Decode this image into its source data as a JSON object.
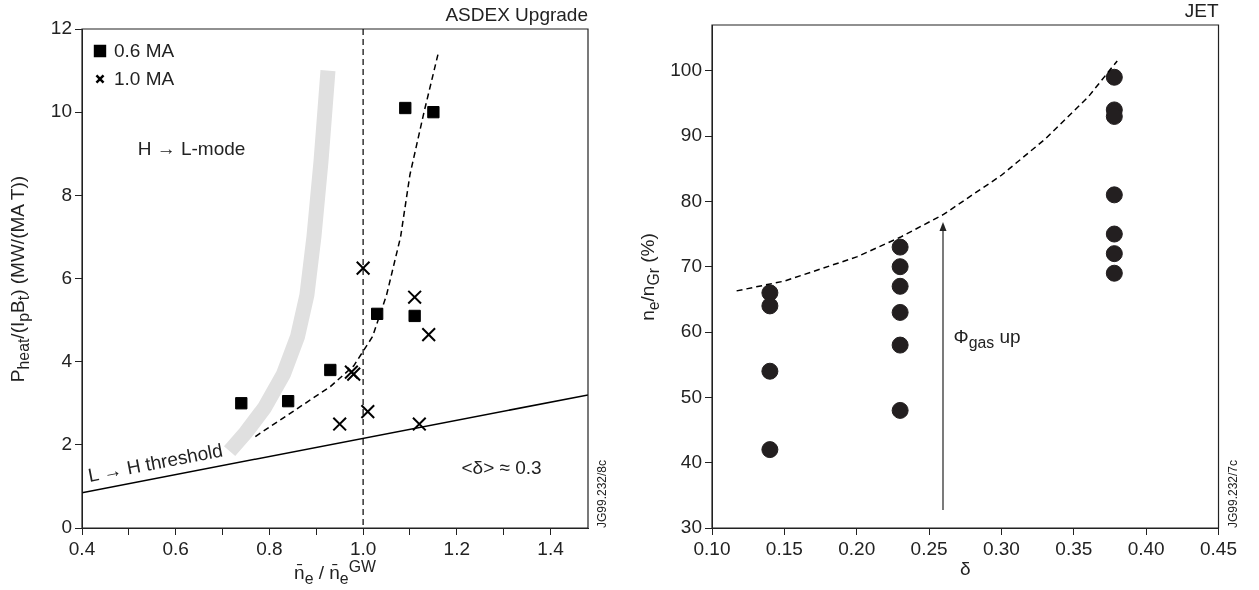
{
  "chart_data": [
    {
      "type": "scatter",
      "title": "ASDEX Upgrade",
      "xlabel": "n̄$_{e}$ / n̄$_{e}$$^{GW}$",
      "ylabel": "P$_{heat}$/(I$_{p}$B$_{t}$) (MW/(MA T))",
      "xlim": [
        0.4,
        1.48
      ],
      "xticks": [
        0.4,
        {
          "value": 0.5,
          "label": null
        },
        0.6,
        {
          "value": 0.7,
          "label": null
        },
        0.8,
        {
          "value": 0.9,
          "label": null
        },
        {
          "value": 1.0,
          "label": "1.0"
        },
        {
          "value": 1.1,
          "label": null
        },
        1.2,
        {
          "value": 1.3,
          "label": null
        },
        1.4
      ],
      "ylim": [
        0,
        12
      ],
      "yticks": [
        0,
        2,
        4,
        6,
        8,
        10,
        12
      ],
      "grid": false,
      "legend": "top left",
      "series": [
        {
          "type": "line",
          "color": "#e0e0e0",
          "marker": "none",
          "line_style": "solid",
          "x": [
            0.715,
            0.75,
            0.79,
            0.83,
            0.86,
            0.88,
            0.895,
            0.91,
            0.925
          ],
          "values": [
            1.85,
            2.3,
            2.9,
            3.7,
            4.6,
            5.6,
            7.0,
            8.8,
            11.0
          ]
        },
        {
          "type": "line",
          "color": "#000000",
          "marker": "none",
          "line_style": "solid",
          "x": [
            0.4,
            1.48
          ],
          "values": [
            0.85,
            3.2
          ]
        },
        {
          "type": "line",
          "color": "#000000",
          "marker": "none",
          "line_style": "dashed",
          "x": [
            0.77,
            0.85,
            0.93,
            0.98,
            1.02,
            1.05,
            1.08,
            1.1,
            1.13,
            1.16
          ],
          "values": [
            2.2,
            2.8,
            3.4,
            3.9,
            4.6,
            5.6,
            7.0,
            8.5,
            10.0,
            11.4
          ]
        },
        {
          "type": "scatter",
          "name": "0.6 MA",
          "color": "#000000",
          "marker": "square",
          "x": [
            0.74,
            0.84,
            0.93,
            1.03,
            1.09,
            1.11,
            1.15
          ],
          "values": [
            3.0,
            3.05,
            3.8,
            5.15,
            10.1,
            5.1,
            10.0
          ]
        },
        {
          "type": "scatter",
          "name": "1.0 MA",
          "color": "#000000",
          "marker": "cross",
          "x": [
            0.95,
            0.975,
            0.98,
            1.0,
            1.01,
            1.11,
            1.12,
            1.14
          ],
          "values": [
            2.5,
            3.75,
            3.7,
            6.25,
            2.8,
            5.55,
            2.5,
            4.65
          ]
        }
      ],
      "ref_lines": [
        {
          "axis": "x",
          "value": 1.0,
          "line_style": "dashed",
          "color": "#000000"
        }
      ],
      "annotations": [
        "H → L-mode",
        "L → H threshold",
        "<δ> ≈ 0.3",
        "JG99.232/8c"
      ]
    },
    {
      "type": "scatter",
      "title": "JET",
      "xlabel": "δ",
      "ylabel": "n$_{e}$/n$_{Gr}$ (%)",
      "xlim": [
        0.1,
        0.45
      ],
      "xticks": [
        {
          "value": 0.1,
          "label": "0.10"
        },
        0.15,
        {
          "value": 0.2,
          "label": "0.20"
        },
        0.25,
        {
          "value": 0.3,
          "label": "0.30"
        },
        0.35,
        {
          "value": 0.4,
          "label": "0.40"
        },
        0.45
      ],
      "ylim": [
        30,
        107
      ],
      "yticks": [
        30,
        40,
        50,
        60,
        70,
        80,
        90,
        100
      ],
      "grid": false,
      "series": [
        {
          "type": "line",
          "color": "#000000",
          "marker": "none",
          "line_style": "dashed",
          "x": [
            0.117,
            0.15,
            0.2,
            0.23,
            0.26,
            0.3,
            0.33,
            0.36,
            0.38
          ],
          "values": [
            66.3,
            67.8,
            71.5,
            74.5,
            78,
            84,
            89.5,
            96,
            101.5
          ]
        },
        {
          "type": "scatter",
          "color": "#231f20",
          "marker": "circle",
          "x": [
            0.14,
            0.14,
            0.14,
            0.14,
            0.23,
            0.23,
            0.23,
            0.23,
            0.23,
            0.23,
            0.378,
            0.378,
            0.378,
            0.378,
            0.378,
            0.378,
            0.378
          ],
          "values": [
            66,
            64,
            54,
            42,
            73,
            70,
            67,
            63,
            58,
            48,
            99,
            94,
            93,
            81,
            75,
            72,
            69
          ]
        }
      ],
      "annotations": [
        "Φ$_{gas}$ up",
        "JG99.232/7c"
      ]
    }
  ]
}
